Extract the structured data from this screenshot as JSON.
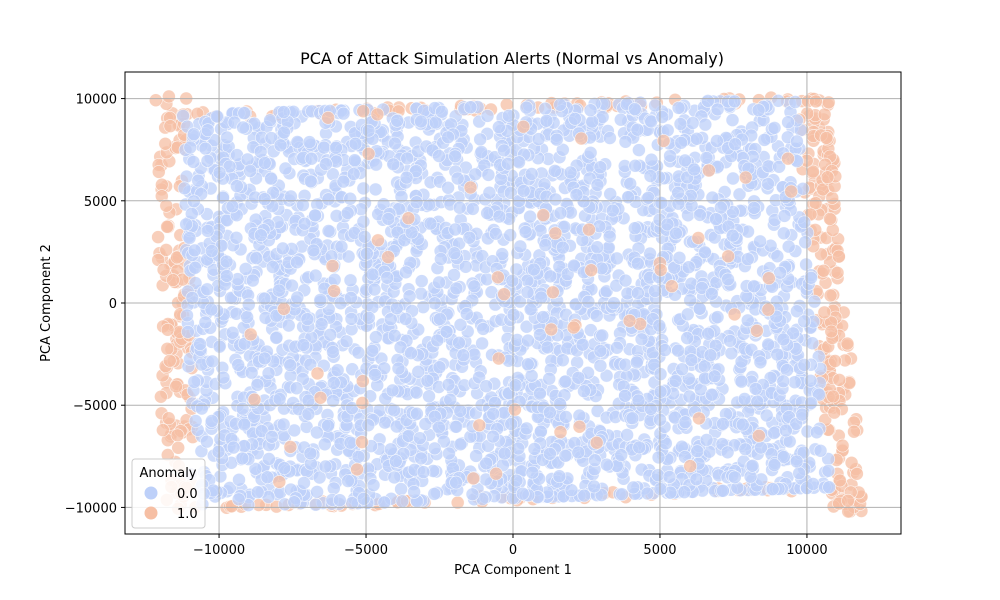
{
  "chart_data": {
    "type": "scatter",
    "title": "PCA of Attack Simulation Alerts (Normal vs Anomaly)",
    "xlabel": "PCA Component 1",
    "ylabel": "PCA Component 2",
    "xlim": [
      -13200,
      13200
    ],
    "ylim": [
      -11300,
      11300
    ],
    "x_ticks": [
      -10000,
      -5000,
      0,
      5000,
      10000
    ],
    "y_ticks": [
      -10000,
      -5000,
      0,
      5000,
      10000
    ],
    "x_tick_labels": [
      "−10000",
      "−5000",
      "0",
      "5000",
      "10000"
    ],
    "y_tick_labels": [
      "−10000",
      "−5000",
      "0",
      "5000",
      "10000"
    ],
    "grid": true,
    "legend": {
      "title": "Anomaly",
      "placement": "lower-left",
      "entries": [
        {
          "label": "0.0",
          "color": "#bdd0f9"
        },
        {
          "label": "1.0",
          "color": "#f6bfa4"
        }
      ]
    },
    "series": [
      {
        "name": "0.0",
        "color": "#bdd0f9",
        "description_region": "dense filled band",
        "x_range": [
          -11500,
          10800
        ],
        "y_range": [
          -10000,
          10000
        ]
      },
      {
        "name": "1.0",
        "color": "#f6bfa4",
        "description_region": "edges of distribution",
        "x_range": [
          -12200,
          12000
        ],
        "y_range": [
          -10300,
          10300
        ]
      }
    ]
  }
}
